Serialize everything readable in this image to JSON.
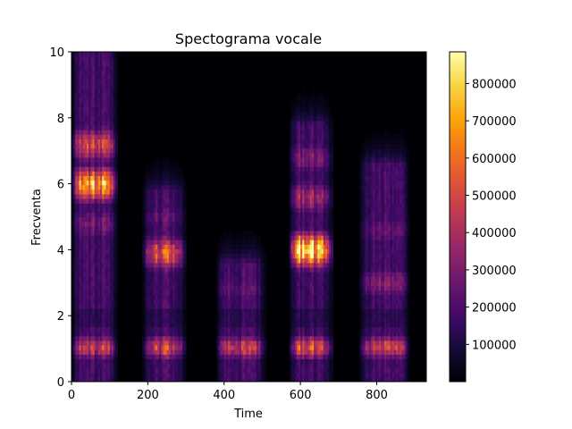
{
  "chart_data": {
    "type": "heatmap",
    "title": "Spectograma vocale",
    "xlabel": "Time",
    "ylabel": "Frecventa",
    "xlim": [
      0,
      930
    ],
    "ylim": [
      0,
      10
    ],
    "x_ticks": [
      "0",
      "200",
      "400",
      "600",
      "800"
    ],
    "y_ticks": [
      "0",
      "2",
      "4",
      "6",
      "8",
      "10"
    ],
    "colormap": "inferno",
    "colorbar": {
      "range": [
        0,
        885000
      ],
      "ticks": [
        "100000",
        "200000",
        "300000",
        "400000",
        "500000",
        "600000",
        "700000",
        "800000"
      ]
    },
    "segments": [
      {
        "x_start": 5,
        "x_end": 115,
        "low_band_energy": 480000,
        "formants": [
          {
            "freq": 6.0,
            "energy": 720000
          },
          {
            "freq": 7.2,
            "energy": 520000
          },
          {
            "freq": 4.8,
            "energy": 300000
          }
        ],
        "upper_extent": 10.0
      },
      {
        "x_start": 190,
        "x_end": 295,
        "low_band_energy": 520000,
        "formants": [
          {
            "freq": 3.9,
            "energy": 560000
          },
          {
            "freq": 5.0,
            "energy": 250000
          }
        ],
        "upper_extent": 5.8
      },
      {
        "x_start": 385,
        "x_end": 505,
        "low_band_energy": 470000,
        "formants": [
          {
            "freq": 2.8,
            "energy": 240000
          }
        ],
        "upper_extent": 3.6
      },
      {
        "x_start": 575,
        "x_end": 680,
        "low_band_energy": 560000,
        "formants": [
          {
            "freq": 4.0,
            "energy": 885000
          },
          {
            "freq": 5.6,
            "energy": 400000
          },
          {
            "freq": 6.8,
            "energy": 330000
          }
        ],
        "upper_extent": 7.8
      },
      {
        "x_start": 760,
        "x_end": 880,
        "low_band_energy": 500000,
        "formants": [
          {
            "freq": 3.0,
            "energy": 330000
          },
          {
            "freq": 4.6,
            "energy": 260000
          }
        ],
        "upper_extent": 6.6
      }
    ]
  }
}
